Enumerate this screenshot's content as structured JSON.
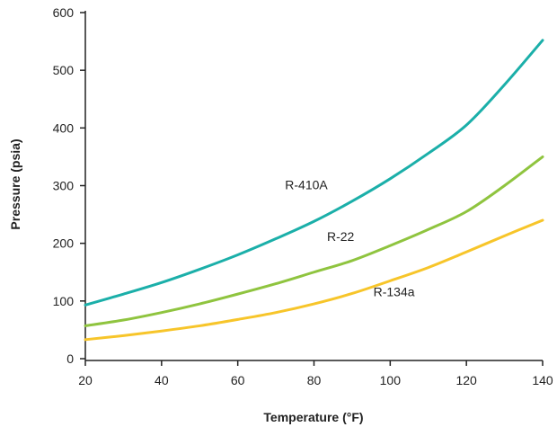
{
  "chart_data": {
    "type": "line",
    "xlabel": "Temperature (°F)",
    "ylabel": "Pressure (psia)",
    "xlim": [
      20,
      140
    ],
    "ylim": [
      0,
      600
    ],
    "x_ticks": [
      20,
      40,
      60,
      80,
      100,
      120,
      140
    ],
    "y_ticks": [
      0,
      100,
      200,
      300,
      400,
      500,
      600
    ],
    "grid": false,
    "legend": "none",
    "series": [
      {
        "name": "R-410A",
        "color": "#1bafa9",
        "x": [
          20,
          30,
          40,
          50,
          60,
          70,
          80,
          90,
          100,
          110,
          120,
          130,
          140
        ],
        "y": [
          93,
          112,
          132,
          155,
          180,
          208,
          238,
          273,
          312,
          356,
          405,
          475,
          552
        ]
      },
      {
        "name": "R-22",
        "color": "#8fc43f",
        "x": [
          20,
          30,
          40,
          50,
          60,
          70,
          80,
          90,
          100,
          110,
          120,
          130,
          140
        ],
        "y": [
          57,
          67,
          80,
          95,
          112,
          130,
          150,
          170,
          196,
          224,
          255,
          300,
          350
        ]
      },
      {
        "name": "R-134a",
        "color": "#f7c52a",
        "x": [
          20,
          30,
          40,
          50,
          60,
          70,
          80,
          90,
          100,
          110,
          120,
          130,
          140
        ],
        "y": [
          33,
          40,
          48,
          57,
          68,
          80,
          95,
          113,
          135,
          158,
          185,
          213,
          240
        ]
      }
    ],
    "annotations": [
      {
        "text": "R-410A",
        "x": 78,
        "y": 294
      },
      {
        "text": "R-22",
        "x": 87,
        "y": 204
      },
      {
        "text": "R-134a",
        "x": 101,
        "y": 108
      }
    ]
  }
}
